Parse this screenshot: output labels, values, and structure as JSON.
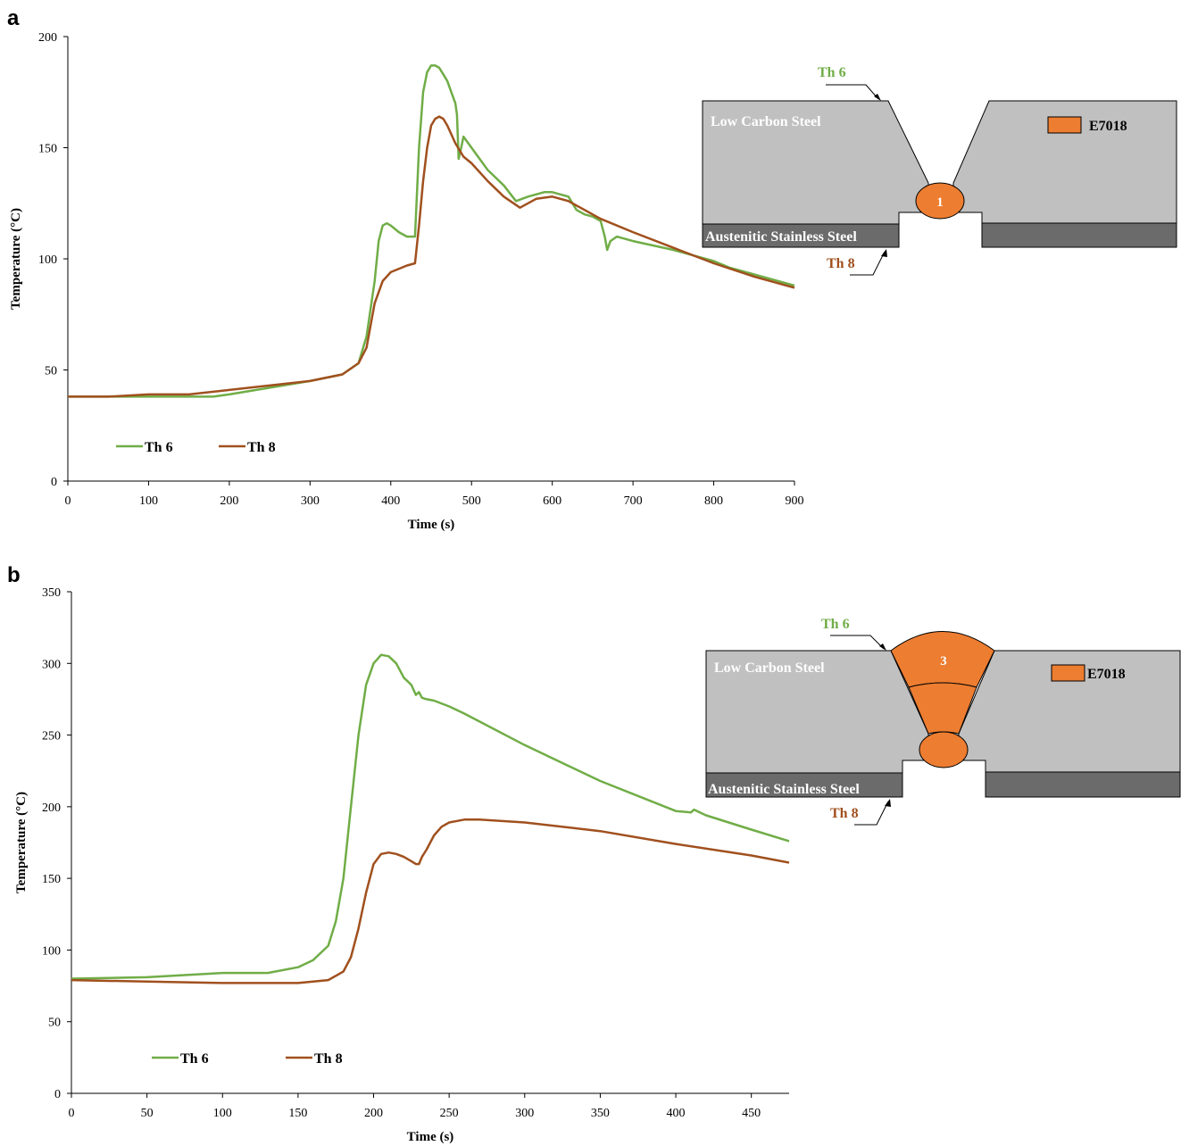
{
  "colors": {
    "th6": "#70ad47",
    "th8": "#a0501e",
    "weld": "#ed7d31",
    "low_carbon": "#c0c0c0",
    "stainless": "#6b6b6b"
  },
  "chart_data": [
    {
      "panel": "a",
      "type": "line",
      "xlabel": "Time (s)",
      "ylabel": "Temperature (°C)",
      "xlim": [
        0,
        900
      ],
      "ylim": [
        0,
        200
      ],
      "xticks": [
        0,
        100,
        200,
        300,
        400,
        500,
        600,
        700,
        800,
        900
      ],
      "yticks": [
        0,
        50,
        100,
        150,
        200
      ],
      "legend": "bottom-left",
      "series": [
        {
          "name": "Th 6",
          "x": [
            0,
            50,
            100,
            150,
            180,
            200,
            250,
            300,
            340,
            360,
            370,
            380,
            385,
            390,
            395,
            400,
            410,
            420,
            430,
            435,
            440,
            445,
            450,
            455,
            460,
            465,
            470,
            475,
            480,
            482,
            484,
            486,
            490,
            500,
            520,
            540,
            555,
            570,
            590,
            600,
            610,
            620,
            630,
            640,
            650,
            660,
            665,
            668,
            672,
            680,
            700,
            750,
            800,
            820,
            850,
            880,
            900
          ],
          "y": [
            38,
            38,
            38,
            38,
            38,
            39,
            42,
            45,
            48,
            53,
            65,
            90,
            108,
            115,
            116,
            115,
            112,
            110,
            110,
            150,
            175,
            184,
            187,
            187,
            186,
            183,
            180,
            175,
            170,
            165,
            145,
            148,
            155,
            150,
            140,
            133,
            126,
            128,
            130,
            130,
            129,
            128,
            122,
            120,
            119,
            117,
            110,
            104,
            108,
            110,
            108,
            104,
            99,
            96,
            93,
            90,
            88
          ]
        },
        {
          "name": "Th 8",
          "x": [
            0,
            50,
            100,
            150,
            200,
            250,
            300,
            340,
            360,
            370,
            380,
            390,
            400,
            420,
            430,
            435,
            440,
            445,
            450,
            455,
            460,
            465,
            470,
            480,
            490,
            500,
            520,
            540,
            560,
            580,
            600,
            620,
            640,
            660,
            700,
            750,
            800,
            850,
            900
          ],
          "y": [
            38,
            38,
            39,
            39,
            41,
            43,
            45,
            48,
            53,
            60,
            80,
            90,
            94,
            97,
            98,
            115,
            135,
            150,
            160,
            163,
            164,
            163,
            160,
            152,
            146,
            143,
            135,
            128,
            123,
            127,
            128,
            126,
            122,
            118,
            112,
            105,
            98,
            92,
            87
          ]
        }
      ]
    },
    {
      "panel": "b",
      "type": "line",
      "xlabel": "Time (s)",
      "ylabel": "Temperature (°C)",
      "xlim": [
        0,
        475
      ],
      "ylim": [
        0,
        350
      ],
      "xticks": [
        0,
        50,
        100,
        150,
        200,
        250,
        300,
        350,
        400,
        450
      ],
      "yticks": [
        0,
        50,
        100,
        150,
        200,
        250,
        300,
        350
      ],
      "legend": "bottom-left",
      "series": [
        {
          "name": "Th 6",
          "x": [
            0,
            50,
            100,
            130,
            150,
            160,
            170,
            175,
            180,
            185,
            190,
            195,
            200,
            205,
            210,
            215,
            220,
            225,
            228,
            230,
            232,
            235,
            240,
            250,
            260,
            300,
            350,
            400,
            410,
            412,
            420,
            450,
            475
          ],
          "y": [
            80,
            81,
            84,
            84,
            88,
            93,
            103,
            120,
            150,
            200,
            250,
            285,
            300,
            306,
            305,
            300,
            290,
            285,
            278,
            280,
            276,
            275,
            274,
            270,
            265,
            243,
            218,
            197,
            196,
            198,
            194,
            184,
            176
          ]
        },
        {
          "name": "Th 8",
          "x": [
            0,
            50,
            100,
            150,
            170,
            180,
            185,
            190,
            195,
            200,
            205,
            210,
            215,
            220,
            225,
            228,
            230,
            232,
            235,
            240,
            245,
            250,
            260,
            270,
            300,
            350,
            400,
            450,
            475
          ],
          "y": [
            79,
            78,
            77,
            77,
            79,
            85,
            95,
            115,
            140,
            160,
            167,
            168,
            167,
            165,
            162,
            160,
            160,
            165,
            170,
            180,
            186,
            189,
            191,
            191,
            189,
            183,
            174,
            166,
            161
          ]
        }
      ]
    }
  ],
  "schematic_a": {
    "low_carbon": "Low Carbon Steel",
    "stainless": "Austenitic Stainless Steel",
    "legend": "E7018",
    "th6": "Th 6",
    "th8": "Th 8",
    "passes": [
      "1"
    ]
  },
  "schematic_b": {
    "low_carbon": "Low Carbon Steel",
    "stainless": "Austenitic Stainless Steel",
    "legend": "E7018",
    "th6": "Th 6",
    "th8": "Th 8",
    "passes": [
      "3"
    ]
  }
}
